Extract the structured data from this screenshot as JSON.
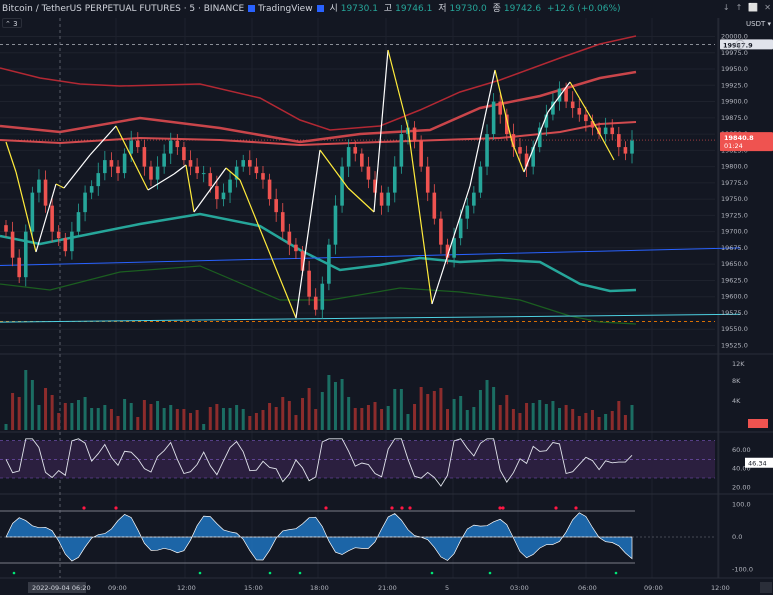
{
  "header": {
    "symbol": "Bitcoin / TetherUS PERPETUAL FUTURES · 5 · BINANCE",
    "brand": "TradingView",
    "open_lbl": "시",
    "open_val": "19730.1",
    "high_lbl": "고",
    "high_val": "19746.1",
    "low_lbl": "저",
    "low_val": "19730.0",
    "close_lbl": "종",
    "close_val": "19742.6",
    "change": "+12.6 (+0.06%)",
    "collapse_label": "3",
    "currency": "USDT"
  },
  "window_buttons": [
    "↓",
    "↑",
    "⬜",
    "✕"
  ],
  "colors": {
    "background": "#131722",
    "up": "#26a69a",
    "down": "#ef5350",
    "zigzag": "#ffeb3b",
    "rsi_fill": "#2b1f3f",
    "osc_fill": "#1e73be"
  },
  "chart_data": {
    "type": "candlestick",
    "price_axis": {
      "ticks": [
        "20000.0",
        "19975.0",
        "19950.0",
        "19925.0",
        "19900.0",
        "19875.0",
        "19850.0",
        "19825.0",
        "19800.0",
        "19775.0",
        "19750.0",
        "19725.0",
        "19700.0",
        "19675.0",
        "19650.0",
        "19625.0",
        "19600.0",
        "19575.0",
        "19550.0",
        "19525.0"
      ],
      "tick_values": [
        20000,
        19975,
        19950,
        19925,
        19900,
        19875,
        19850,
        19825,
        19800,
        19775,
        19750,
        19725,
        19700,
        19675,
        19650,
        19625,
        19600,
        19575,
        19550,
        19525
      ],
      "range": [
        19515,
        20010
      ]
    },
    "alert_price": "19987.9",
    "current_price": "19840.8",
    "countdown": "01:24",
    "time_axis": {
      "labels": [
        "09:00",
        "12:00",
        "15:00",
        "18:00",
        "21:00",
        "5",
        "03:00",
        "06:00",
        "09:00",
        "12:00"
      ],
      "crosshair_label": "2022-09-04  06:20"
    },
    "closes": [
      19700,
      19660,
      19630,
      19700,
      19760,
      19780,
      19740,
      19700,
      19690,
      19670,
      19700,
      19730,
      19760,
      19770,
      19790,
      19810,
      19800,
      19790,
      19820,
      19840,
      19830,
      19800,
      19780,
      19800,
      19820,
      19840,
      19830,
      19810,
      19800,
      19790,
      19790,
      19770,
      19750,
      19760,
      19780,
      19800,
      19810,
      19800,
      19790,
      19780,
      19750,
      19730,
      19700,
      19680,
      19670,
      19640,
      19600,
      19580,
      19620,
      19680,
      19740,
      19800,
      19830,
      19820,
      19800,
      19780,
      19760,
      19740,
      19760,
      19800,
      19850,
      19860,
      19840,
      19800,
      19760,
      19720,
      19680,
      19660,
      19690,
      19720,
      19740,
      19760,
      19800,
      19850,
      19900,
      19880,
      19850,
      19830,
      19820,
      19800,
      19830,
      19860,
      19880,
      19900,
      19920,
      19900,
      19890,
      19880,
      19870,
      19860,
      19850,
      19860,
      19850,
      19830,
      19820,
      19840
    ],
    "volume_axis": [
      "12K",
      "8K",
      "4K"
    ],
    "rsi": {
      "value": "46.34",
      "ticks": [
        "60.00",
        "40.00",
        "20.00"
      ],
      "tick_values": [
        60,
        40,
        20
      ]
    },
    "oscillator": {
      "ticks": [
        "100.0",
        "0.0",
        "-100.0"
      ],
      "tick_values": [
        100,
        0,
        -100
      ]
    }
  }
}
